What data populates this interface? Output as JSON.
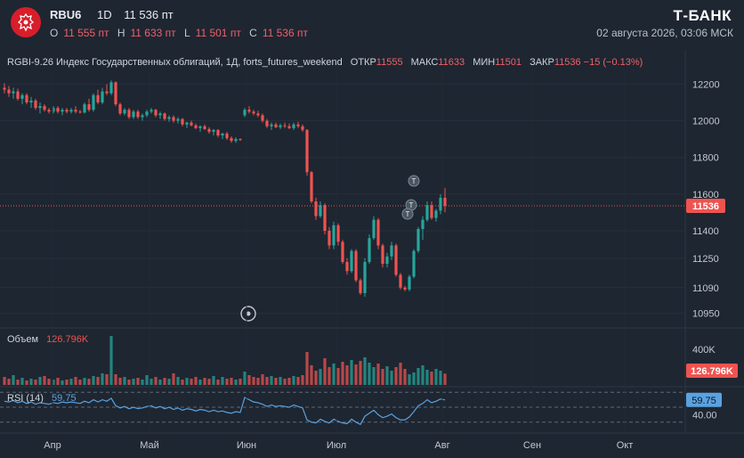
{
  "header": {
    "ticker": "RBU6",
    "interval": "1D",
    "price": "11 536 пт",
    "ohlc": [
      {
        "k": "O",
        "v": "11 555 пт"
      },
      {
        "k": "H",
        "v": "11 633 пт"
      },
      {
        "k": "L",
        "v": "11 501 пт"
      },
      {
        "k": "C",
        "v": "11 536 пт"
      }
    ],
    "brand": "Т-БАНК",
    "datetime": "02 августа 2026, 03:06 МСК"
  },
  "info": {
    "title": "RGBI-9.26 Индекс Государственных облигаций, 1Д, forts_futures_weekend",
    "open_k": "ОТКР",
    "open_v": "11555",
    "high_k": "МАКС",
    "high_v": "11633",
    "low_k": "МИН",
    "low_v": "11501",
    "close_k": "ЗАКР",
    "close_v": "11536",
    "change": "−15 (−0.13%)"
  },
  "volume": {
    "label": "Объем",
    "value": "126.796K",
    "axis_tick": "400K"
  },
  "rsi": {
    "label": "RSI (14)",
    "value": "59.75",
    "axis_tick": "40.00"
  },
  "price_marker": "11536",
  "colors": {
    "up": "#26a69a",
    "down": "#ef5350",
    "rsi_line": "#5aa2e0",
    "background": "#1e2631"
  },
  "chart_data": {
    "type": "candlestick",
    "y_ticks": [
      12200,
      12000,
      11800,
      11600,
      11400,
      11250,
      11090,
      10950
    ],
    "ylim": [
      10880,
      12270
    ],
    "x_ticks": [
      "Апр",
      "Май",
      "Июн",
      "Июл",
      "Авг",
      "Сен",
      "Окт"
    ],
    "last_price": 11536,
    "candles": [
      [
        12180,
        12205,
        12150,
        12170
      ],
      [
        12170,
        12190,
        12130,
        12150
      ],
      [
        12150,
        12180,
        12120,
        12160
      ],
      [
        12160,
        12175,
        12110,
        12120
      ],
      [
        12120,
        12150,
        12090,
        12140
      ],
      [
        12140,
        12150,
        12090,
        12100
      ],
      [
        12100,
        12130,
        12070,
        12110
      ],
      [
        12110,
        12120,
        12060,
        12070
      ],
      [
        12070,
        12100,
        12040,
        12080
      ],
      [
        12080,
        12090,
        12050,
        12060
      ],
      [
        12060,
        12070,
        12040,
        12050
      ],
      [
        12050,
        12080,
        12040,
        12070
      ],
      [
        12070,
        12080,
        12040,
        12050
      ],
      [
        12050,
        12070,
        12030,
        12060
      ],
      [
        12060,
        12070,
        12040,
        12050
      ],
      [
        12050,
        12070,
        12040,
        12060
      ],
      [
        12060,
        12080,
        12040,
        12050
      ],
      [
        12050,
        12060,
        12040,
        12045
      ],
      [
        12045,
        12100,
        12040,
        12090
      ],
      [
        12090,
        12120,
        12050,
        12060
      ],
      [
        12060,
        12150,
        12050,
        12140
      ],
      [
        12140,
        12170,
        12090,
        12100
      ],
      [
        12100,
        12180,
        12090,
        12160
      ],
      [
        12160,
        12200,
        12140,
        12150
      ],
      [
        12150,
        12220,
        12140,
        12210
      ],
      [
        12210,
        12215,
        12080,
        12090
      ],
      [
        12090,
        12100,
        12030,
        12040
      ],
      [
        12040,
        12070,
        12030,
        12060
      ],
      [
        12060,
        12070,
        12010,
        12020
      ],
      [
        12020,
        12060,
        12010,
        12050
      ],
      [
        12050,
        12060,
        12010,
        12020
      ],
      [
        12020,
        12040,
        12000,
        12030
      ],
      [
        12030,
        12060,
        12020,
        12050
      ],
      [
        12050,
        12070,
        12040,
        12060
      ],
      [
        12060,
        12065,
        12020,
        12030
      ],
      [
        12030,
        12050,
        12010,
        12040
      ],
      [
        12040,
        12045,
        12000,
        12010
      ],
      [
        12010,
        12030,
        11995,
        12020
      ],
      [
        12020,
        12030,
        11990,
        12000
      ],
      [
        12000,
        12020,
        11985,
        12010
      ],
      [
        12010,
        12015,
        11970,
        11980
      ],
      [
        11980,
        11995,
        11960,
        11990
      ],
      [
        11990,
        12000,
        11970,
        11975
      ],
      [
        11975,
        11985,
        11955,
        11960
      ],
      [
        11960,
        11975,
        11940,
        11970
      ],
      [
        11970,
        11980,
        11950,
        11955
      ],
      [
        11955,
        11965,
        11930,
        11940
      ],
      [
        11940,
        11955,
        11920,
        11950
      ],
      [
        11950,
        11955,
        11910,
        11920
      ],
      [
        11920,
        11935,
        11900,
        11930
      ],
      [
        11930,
        11940,
        11895,
        11905
      ],
      [
        11905,
        11915,
        11880,
        11890
      ],
      [
        11890,
        11910,
        11880,
        11900
      ],
      [
        11900,
        11905,
        11890,
        11895
      ],
      [
        12030,
        12070,
        12020,
        12060
      ],
      [
        12060,
        12080,
        12040,
        12050
      ],
      [
        12050,
        12060,
        12030,
        12040
      ],
      [
        12040,
        12055,
        12020,
        12030
      ],
      [
        12030,
        12040,
        11990,
        12000
      ],
      [
        12000,
        12010,
        11960,
        11970
      ],
      [
        11970,
        11990,
        11950,
        11980
      ],
      [
        11980,
        11990,
        11960,
        11965
      ],
      [
        11965,
        11985,
        11955,
        11975
      ],
      [
        11975,
        11990,
        11960,
        11970
      ],
      [
        11970,
        11985,
        11955,
        11960
      ],
      [
        11960,
        11990,
        11950,
        11980
      ],
      [
        11980,
        11995,
        11960,
        11970
      ],
      [
        11970,
        11980,
        11940,
        11950
      ],
      [
        11950,
        11955,
        11700,
        11720
      ],
      [
        11720,
        11725,
        11550,
        11560
      ],
      [
        11560,
        11580,
        11460,
        11480
      ],
      [
        11480,
        11560,
        11470,
        11540
      ],
      [
        11540,
        11550,
        11380,
        11400
      ],
      [
        11400,
        11420,
        11300,
        11320
      ],
      [
        11320,
        11450,
        11300,
        11430
      ],
      [
        11430,
        11440,
        11320,
        11340
      ],
      [
        11340,
        11350,
        11220,
        11230
      ],
      [
        11230,
        11250,
        11160,
        11180
      ],
      [
        11180,
        11300,
        11170,
        11290
      ],
      [
        11290,
        11300,
        11120,
        11130
      ],
      [
        11130,
        11140,
        11050,
        11060
      ],
      [
        11060,
        11250,
        11040,
        11230
      ],
      [
        11230,
        11380,
        11220,
        11360
      ],
      [
        11360,
        11480,
        11350,
        11460
      ],
      [
        11460,
        11470,
        11300,
        11320
      ],
      [
        11320,
        11330,
        11200,
        11220
      ],
      [
        11220,
        11280,
        11200,
        11260
      ],
      [
        11260,
        11340,
        11240,
        11320
      ],
      [
        11320,
        11330,
        11150,
        11160
      ],
      [
        11160,
        11170,
        11080,
        11090
      ],
      [
        11090,
        11100,
        11070,
        11080
      ],
      [
        11080,
        11160,
        11070,
        11150
      ],
      [
        11150,
        11300,
        11140,
        11290
      ],
      [
        11290,
        11420,
        11280,
        11410
      ],
      [
        11410,
        11480,
        11350,
        11460
      ],
      [
        11460,
        11560,
        11450,
        11540
      ],
      [
        11540,
        11560,
        11460,
        11470
      ],
      [
        11470,
        11520,
        11450,
        11510
      ],
      [
        11510,
        11600,
        11490,
        11580
      ],
      [
        11580,
        11633,
        11501,
        11536
      ]
    ],
    "volume_scale": [
      0,
      600000
    ],
    "volumes": [
      90000,
      70000,
      110000,
      60000,
      80000,
      50000,
      70000,
      60000,
      90000,
      100000,
      70000,
      60000,
      80000,
      50000,
      60000,
      70000,
      90000,
      60000,
      80000,
      70000,
      100000,
      90000,
      130000,
      120000,
      550000,
      120000,
      80000,
      90000,
      60000,
      70000,
      80000,
      60000,
      110000,
      70000,
      90000,
      60000,
      80000,
      70000,
      130000,
      90000,
      60000,
      80000,
      70000,
      90000,
      60000,
      80000,
      70000,
      100000,
      60000,
      90000,
      70000,
      80000,
      60000,
      70000,
      150000,
      110000,
      90000,
      80000,
      120000,
      90000,
      100000,
      80000,
      90000,
      70000,
      80000,
      100000,
      90000,
      110000,
      370000,
      220000,
      160000,
      180000,
      300000,
      200000,
      240000,
      190000,
      260000,
      220000,
      280000,
      230000,
      270000,
      310000,
      250000,
      200000,
      240000,
      180000,
      210000,
      160000,
      200000,
      250000,
      180000,
      120000,
      140000,
      190000,
      220000,
      170000,
      150000,
      180000,
      160000,
      126796
    ],
    "rsi_ylim": [
      25,
      75
    ],
    "rsi_levels": [
      70,
      50,
      30
    ],
    "rsi": [
      58,
      57,
      59,
      56,
      58,
      55,
      57,
      54,
      56,
      55,
      54,
      56,
      55,
      57,
      56,
      57,
      56,
      55,
      58,
      56,
      60,
      57,
      60,
      58,
      62,
      52,
      49,
      51,
      48,
      50,
      48,
      49,
      51,
      52,
      49,
      51,
      48,
      50,
      47,
      49,
      46,
      48,
      47,
      45,
      47,
      46,
      44,
      46,
      44,
      45,
      43,
      42,
      44,
      43,
      63,
      60,
      57,
      56,
      54,
      51,
      53,
      51,
      52,
      51,
      50,
      53,
      51,
      49,
      33,
      30,
      29,
      34,
      31,
      29,
      34,
      31,
      29,
      28,
      34,
      30,
      27,
      38,
      42,
      46,
      40,
      36,
      38,
      41,
      36,
      33,
      33,
      37,
      44,
      52,
      55,
      60,
      56,
      58,
      61,
      59.75
    ]
  }
}
